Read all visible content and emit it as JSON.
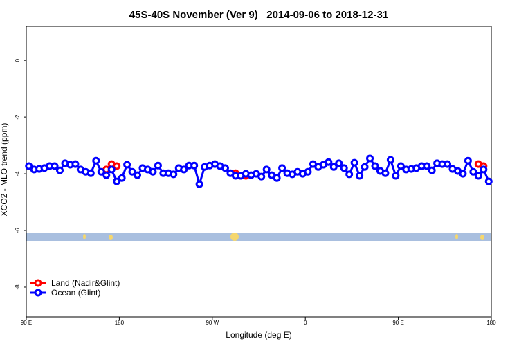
{
  "chart_data": {
    "type": "line",
    "title": "45S-40S November (Ver 9)   2014-09-06 to 2018-12-31",
    "xlabel": "Longitude (deg E)",
    "ylabel": "XCO2 - MLO trend (ppm)",
    "xlim": [
      90,
      540
    ],
    "xticks": [
      {
        "value": 90,
        "label": "90 E"
      },
      180,
      {
        "value": 270,
        "label": "90 W"
      },
      {
        "value": 360,
        "label": "0"
      },
      {
        "value": 450,
        "label": "90 E"
      },
      {
        "value": 540,
        "label": "180"
      }
    ],
    "ylim": [
      -9.05,
      1.2
    ],
    "yticks": [
      0,
      -2,
      -4,
      -6,
      -8
    ],
    "legend": "bottom-left",
    "series": [
      {
        "name": "Land (Nadir&Glint)",
        "color": "#ff0000",
        "x": [
          167.5,
          172.5,
          177.5,
          null,
          292.5,
          297.5,
          302.5,
          null,
          527.5,
          532.5
        ],
        "values": [
          -3.85,
          -3.66,
          -3.73,
          null,
          -3.98,
          -4.07,
          -4.07,
          null,
          -3.66,
          -3.73
        ]
      },
      {
        "name": "Ocean (Glint)",
        "color": "#0000ff",
        "x": [
          92.5,
          97.5,
          102.5,
          107.5,
          112.5,
          117.5,
          122.5,
          127.5,
          132.5,
          137.5,
          142.5,
          147.5,
          152.5,
          157.5,
          162.5,
          167.5,
          172.5,
          177.5,
          182.5,
          187.5,
          192.5,
          197.5,
          202.5,
          207.5,
          212.5,
          217.5,
          222.5,
          227.5,
          232.5,
          237.5,
          242.5,
          247.5,
          252.5,
          257.5,
          262.5,
          267.5,
          272.5,
          277.5,
          282.5,
          287.5,
          292.5,
          297.5,
          302.5,
          307.5,
          312.5,
          317.5,
          322.5,
          327.5,
          332.5,
          337.5,
          342.5,
          347.5,
          352.5,
          357.5,
          362.5,
          367.5,
          372.5,
          377.5,
          382.5,
          387.5,
          392.5,
          397.5,
          402.5,
          407.5,
          412.5,
          417.5,
          422.5,
          427.5,
          432.5,
          437.5,
          442.5,
          447.5,
          452.5,
          457.5,
          462.5,
          467.5,
          472.5,
          477.5,
          482.5,
          487.5,
          492.5,
          497.5,
          502.5,
          507.5,
          512.5,
          517.5,
          522.5,
          527.5,
          532.5,
          537.5
        ],
        "values": [
          -3.73,
          -3.85,
          -3.83,
          -3.8,
          -3.73,
          -3.73,
          -3.88,
          -3.63,
          -3.68,
          -3.66,
          -3.85,
          -3.93,
          -3.98,
          -3.54,
          -3.93,
          -4.05,
          -3.85,
          -4.27,
          -4.15,
          -3.68,
          -3.93,
          -4.05,
          -3.8,
          -3.85,
          -3.93,
          -3.71,
          -3.98,
          -3.98,
          -4.02,
          -3.8,
          -3.85,
          -3.71,
          -3.71,
          -4.37,
          -3.76,
          -3.71,
          -3.66,
          -3.73,
          -3.8,
          -3.98,
          -4.07,
          -4.07,
          -4.0,
          -4.05,
          -4.0,
          -4.1,
          -3.85,
          -4.05,
          -4.15,
          -3.8,
          -3.98,
          -4.02,
          -3.93,
          -4.0,
          -3.93,
          -3.66,
          -3.76,
          -3.68,
          -3.59,
          -3.76,
          -3.63,
          -3.8,
          -4.02,
          -3.61,
          -4.07,
          -3.76,
          -3.46,
          -3.73,
          -3.9,
          -3.98,
          -3.51,
          -4.07,
          -3.73,
          -3.85,
          -3.83,
          -3.8,
          -3.73,
          -3.73,
          -3.88,
          -3.63,
          -3.66,
          -3.66,
          -3.83,
          -3.9,
          -4.0,
          -3.54,
          -3.93,
          -4.07,
          -3.85,
          -4.27
        ]
      }
    ]
  }
}
